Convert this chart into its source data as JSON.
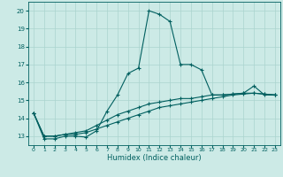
{
  "title": "",
  "xlabel": "Humidex (Indice chaleur)",
  "ylabel": "",
  "background_color": "#cceae6",
  "grid_color": "#aad4ce",
  "line_color": "#005f5f",
  "xlim": [
    -0.5,
    23.5
  ],
  "ylim": [
    12.5,
    20.5
  ],
  "yticks": [
    13,
    14,
    15,
    16,
    17,
    18,
    19,
    20
  ],
  "xticks": [
    0,
    1,
    2,
    3,
    4,
    5,
    6,
    7,
    8,
    9,
    10,
    11,
    12,
    13,
    14,
    15,
    16,
    17,
    18,
    19,
    20,
    21,
    22,
    23
  ],
  "series1_x": [
    0,
    1,
    2,
    3,
    4,
    5,
    6,
    7,
    8,
    9,
    10,
    11,
    12,
    13,
    14,
    15,
    16,
    17,
    18,
    19,
    20,
    21,
    22,
    23
  ],
  "series1_y": [
    14.3,
    12.85,
    12.85,
    13.0,
    13.0,
    12.95,
    13.3,
    14.4,
    15.3,
    16.5,
    16.8,
    20.0,
    19.8,
    19.4,
    17.0,
    17.0,
    16.7,
    15.3,
    15.3,
    15.35,
    15.4,
    15.8,
    15.3,
    15.3
  ],
  "series2_x": [
    0,
    1,
    2,
    3,
    4,
    5,
    6,
    7,
    8,
    9,
    10,
    11,
    12,
    13,
    14,
    15,
    16,
    17,
    18,
    19,
    20,
    21,
    22,
    23
  ],
  "series2_y": [
    14.3,
    13.0,
    13.0,
    13.1,
    13.1,
    13.2,
    13.4,
    13.6,
    13.8,
    14.0,
    14.2,
    14.4,
    14.6,
    14.7,
    14.8,
    14.9,
    15.0,
    15.1,
    15.2,
    15.3,
    15.35,
    15.4,
    15.35,
    15.3
  ],
  "series3_x": [
    0,
    1,
    2,
    3,
    4,
    5,
    6,
    7,
    8,
    9,
    10,
    11,
    12,
    13,
    14,
    15,
    16,
    17,
    18,
    19,
    20,
    21,
    22,
    23
  ],
  "series3_y": [
    14.3,
    13.0,
    13.0,
    13.1,
    13.2,
    13.3,
    13.6,
    13.9,
    14.2,
    14.4,
    14.6,
    14.8,
    14.9,
    15.0,
    15.1,
    15.1,
    15.2,
    15.3,
    15.3,
    15.35,
    15.4,
    15.4,
    15.35,
    15.3
  ]
}
